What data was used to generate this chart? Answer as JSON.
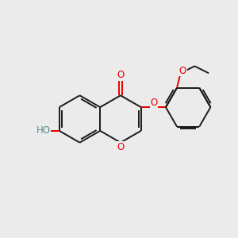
{
  "bg_color": "#ebebeb",
  "bond_color": "#1a1a1a",
  "o_color": "#e60000",
  "oh_h_color": "#5a8a8a",
  "lw": 1.4,
  "figsize": [
    3.0,
    3.0
  ],
  "dpi": 100,
  "xlim": [
    0,
    10
  ],
  "ylim": [
    0,
    10
  ],
  "label_fs": 8.5,
  "chromone_ox": 4.2,
  "chromone_oy": 5.0,
  "bl": 1.0
}
